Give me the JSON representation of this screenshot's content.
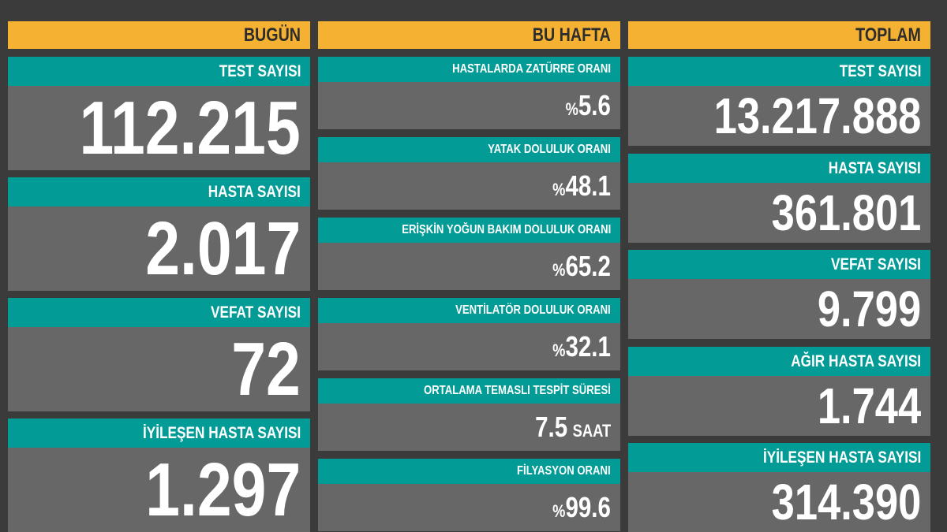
{
  "columns": [
    {
      "header": "BUGÜN",
      "panels": [
        {
          "label": "TEST SAYISI",
          "value": "112.215"
        },
        {
          "label": "HASTA SAYISI",
          "value": "2.017"
        },
        {
          "label": "VEFAT SAYISI",
          "value": "72"
        },
        {
          "label": "İYİLEŞEN HASTA SAYISI",
          "value": "1.297"
        }
      ]
    },
    {
      "header": "BU HAFTA",
      "panels": [
        {
          "label": "HASTALARDA ZATÜRRE ORANI",
          "prefix": "%",
          "value": "5.6"
        },
        {
          "label": "YATAK DOLULUK ORANI",
          "prefix": "%",
          "value": "48.1"
        },
        {
          "label": "ERİŞKİN YOĞUN BAKIM DOLULUK ORANI",
          "prefix": "%",
          "value": "65.2"
        },
        {
          "label": "VENTİLATÖR DOLULUK ORANI",
          "prefix": "%",
          "value": "32.1"
        },
        {
          "label": "ORTALAMA TEMASLI TESPİT SÜRESİ",
          "value": "7.5",
          "suffix": "SAAT"
        },
        {
          "label": "FİLYASYON ORANI",
          "prefix": "%",
          "value": "99.6"
        }
      ]
    },
    {
      "header": "TOPLAM",
      "panels": [
        {
          "label": "TEST SAYISI",
          "value": "13.217.888"
        },
        {
          "label": "HASTA SAYISI",
          "value": "361.801"
        },
        {
          "label": "VEFAT SAYISI",
          "value": "9.799"
        },
        {
          "label": "AĞIR HASTA SAYISI",
          "value": "1.744"
        },
        {
          "label": "İYİLEŞEN HASTA SAYISI",
          "value": "314.390"
        }
      ]
    }
  ]
}
